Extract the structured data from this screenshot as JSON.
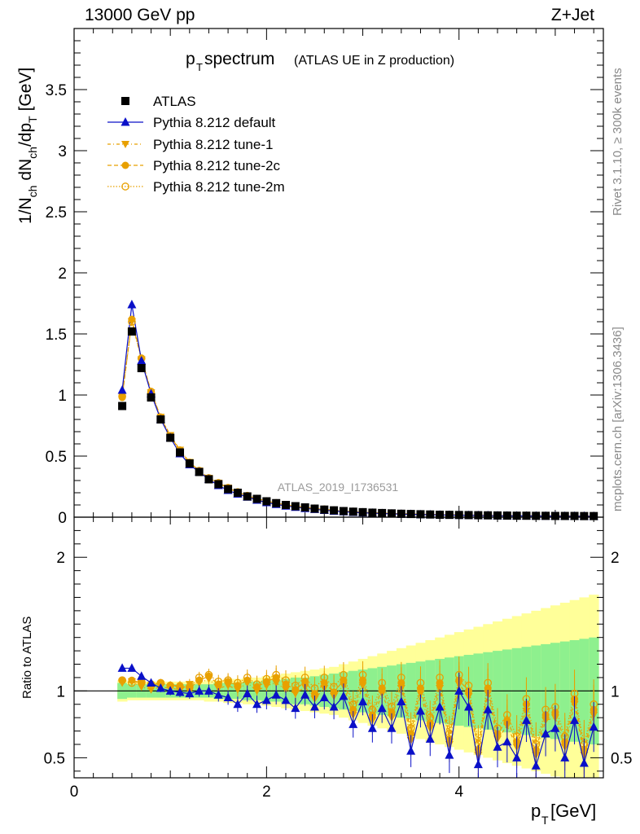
{
  "header": {
    "energy_label": "13000 GeV pp",
    "process_label": "Z+Jet"
  },
  "side_labels": {
    "rivet": "Rivet 3.1.10, ≥ 300k events",
    "mcplots": "mcplots.cern.ch [arXiv:1306.3436]"
  },
  "chart_data": {
    "type": "line",
    "title_main": "p",
    "title_sub": "T",
    "title_rest": " spectrum",
    "title_note": "(ATLAS UE in Z production)",
    "analysis_id": "ATLAS_2019_I1736531",
    "xlabel_main": "p",
    "xlabel_sub": "T",
    "xlabel_unit": " [GeV]",
    "ylabel": "1/N_ch dN_ch/dp_T [GeV]",
    "ylabel_parts": {
      "a": "1/N",
      "b": "ch",
      "c": " dN",
      "d": "ch",
      "e": "/dp",
      "f": "T",
      "g": " [GeV]"
    },
    "ratio_ylabel": "Ratio to ATLAS",
    "xlim": [
      0,
      5.5
    ],
    "ylim": [
      0,
      4.0
    ],
    "ratio_ylim": [
      0.35,
      2.3
    ],
    "x_ticks": [
      "0",
      "2",
      "4"
    ],
    "y_ticks": [
      "0",
      "0.5",
      "1",
      "1.5",
      "2",
      "2.5",
      "3",
      "3.5"
    ],
    "ratio_ticks": [
      "0.5",
      "1",
      "2"
    ],
    "x": [
      0.5,
      0.6,
      0.7,
      0.8,
      0.9,
      1.0,
      1.1,
      1.2,
      1.3,
      1.4,
      1.5,
      1.6,
      1.7,
      1.8,
      1.9,
      2.0,
      2.1,
      2.2,
      2.3,
      2.4,
      2.5,
      2.6,
      2.7,
      2.8,
      2.9,
      3.0,
      3.1,
      3.2,
      3.3,
      3.4,
      3.5,
      3.6,
      3.7,
      3.8,
      3.9,
      4.0,
      4.1,
      4.2,
      4.3,
      4.4,
      4.5,
      4.6,
      4.7,
      4.8,
      4.9,
      5.0,
      5.1,
      5.2,
      5.3,
      5.4
    ],
    "series": [
      {
        "name": "ATLAS",
        "values": [
          0.91,
          1.52,
          1.22,
          0.98,
          0.8,
          0.65,
          0.53,
          0.44,
          0.37,
          0.31,
          0.27,
          0.23,
          0.2,
          0.17,
          0.15,
          0.13,
          0.115,
          0.1,
          0.09,
          0.08,
          0.07,
          0.062,
          0.056,
          0.05,
          0.045,
          0.041,
          0.037,
          0.034,
          0.031,
          0.028,
          0.026,
          0.024,
          0.022,
          0.02,
          0.019,
          0.018,
          0.017,
          0.016,
          0.015,
          0.014,
          0.013,
          0.012,
          0.012,
          0.011,
          0.011,
          0.01,
          0.01,
          0.01,
          0.009,
          0.009
        ]
      },
      {
        "name": "Pythia 8.212 default",
        "values": [
          1.04,
          1.74,
          1.28,
          1.01,
          0.8,
          0.65,
          0.52,
          0.43,
          0.37,
          0.31,
          0.26,
          0.22,
          0.19,
          0.165,
          0.14,
          0.12,
          0.105,
          0.092,
          0.082,
          0.072,
          0.064,
          0.057,
          0.05,
          0.045,
          0.04,
          0.036,
          0.033,
          0.03,
          0.027,
          0.025,
          0.023,
          0.021,
          0.02,
          0.018,
          0.017,
          0.016,
          0.015,
          0.014,
          0.013,
          0.012,
          0.011,
          0.011,
          0.01,
          0.01,
          0.009,
          0.009,
          0.008,
          0.008,
          0.008,
          0.007
        ]
      },
      {
        "name": "Pythia 8.212 tune-1",
        "values": [
          0.99,
          1.6,
          1.29,
          1.02,
          0.82,
          0.67,
          0.55,
          0.45,
          0.38,
          0.32,
          0.28,
          0.24,
          0.2,
          0.175,
          0.15,
          0.13,
          0.115,
          0.1,
          0.09,
          0.08,
          0.071,
          0.063,
          0.056,
          0.05,
          0.045,
          0.041,
          0.037,
          0.034,
          0.031,
          0.028,
          0.026,
          0.024,
          0.022,
          0.02,
          0.019,
          0.018,
          0.017,
          0.016,
          0.015,
          0.014,
          0.013,
          0.012,
          0.012,
          0.011,
          0.011,
          0.01,
          0.01,
          0.01,
          0.009,
          0.009
        ]
      },
      {
        "name": "Pythia 8.212 tune-2c",
        "values": [
          0.98,
          1.62,
          1.3,
          1.03,
          0.82,
          0.66,
          0.55,
          0.45,
          0.38,
          0.32,
          0.28,
          0.24,
          0.205,
          0.175,
          0.152,
          0.132,
          0.115,
          0.1,
          0.09,
          0.08,
          0.071,
          0.063,
          0.056,
          0.05,
          0.045,
          0.041,
          0.037,
          0.034,
          0.031,
          0.028,
          0.026,
          0.024,
          0.022,
          0.02,
          0.019,
          0.018,
          0.017,
          0.016,
          0.015,
          0.014,
          0.013,
          0.012,
          0.012,
          0.011,
          0.011,
          0.01,
          0.01,
          0.01,
          0.009,
          0.009
        ]
      },
      {
        "name": "Pythia 8.212 tune-2m",
        "values": [
          0.99,
          1.6,
          1.3,
          1.02,
          0.81,
          0.66,
          0.54,
          0.44,
          0.38,
          0.32,
          0.28,
          0.24,
          0.205,
          0.175,
          0.152,
          0.132,
          0.116,
          0.101,
          0.091,
          0.081,
          0.072,
          0.064,
          0.057,
          0.051,
          0.046,
          0.042,
          0.038,
          0.035,
          0.032,
          0.029,
          0.027,
          0.025,
          0.023,
          0.021,
          0.02,
          0.019,
          0.018,
          0.017,
          0.016,
          0.015,
          0.014,
          0.013,
          0.013,
          0.012,
          0.012,
          0.011,
          0.011,
          0.011,
          0.01,
          0.01
        ]
      }
    ],
    "ratios": {
      "Pythia 8.212 default": [
        1.17,
        1.17,
        1.11,
        1.06,
        1.02,
        1.0,
        0.99,
        0.98,
        1.0,
        1.0,
        0.97,
        0.95,
        0.9,
        0.98,
        0.9,
        0.93,
        0.97,
        0.93,
        0.87,
        0.97,
        0.88,
        0.95,
        0.88,
        0.96,
        0.75,
        0.92,
        0.72,
        0.87,
        0.72,
        0.92,
        0.55,
        0.85,
        0.64,
        0.88,
        0.52,
        1.0,
        0.88,
        0.45,
        0.86,
        0.58,
        0.62,
        0.5,
        0.78,
        0.44,
        0.68,
        0.72,
        0.5,
        0.78,
        0.46,
        0.73
      ],
      "Pythia 8.212 tune-1": [
        1.06,
        1.07,
        1.03,
        1.01,
        1.03,
        1.02,
        1.01,
        1.05,
        1.06,
        1.09,
        1.02,
        1.04,
        1.01,
        1.06,
        1.0,
        1.04,
        1.06,
        1.01,
        0.98,
        1.03,
        0.94,
        1.02,
        0.96,
        1.04,
        0.82,
        1.04,
        0.78,
        0.98,
        0.8,
        1.02,
        0.63,
        0.98,
        0.72,
        1.02,
        0.6,
        1.05,
        0.96,
        0.52,
        0.98,
        0.64,
        0.74,
        0.58,
        0.85,
        0.52,
        0.78,
        0.8,
        0.58,
        0.9,
        0.52,
        0.82
      ],
      "Pythia 8.212 tune-2c": [
        1.08,
        1.08,
        1.06,
        1.04,
        1.06,
        1.04,
        1.04,
        1.02,
        1.08,
        1.11,
        1.05,
        1.07,
        1.04,
        1.08,
        1.03,
        1.07,
        1.1,
        1.05,
        1.01,
        1.07,
        0.98,
        1.06,
        0.99,
        1.08,
        0.86,
        1.08,
        0.82,
        1.02,
        0.84,
        1.06,
        0.68,
        1.02,
        0.76,
        1.06,
        0.64,
        1.08,
        1.0,
        0.56,
        1.02,
        0.68,
        0.78,
        0.62,
        0.9,
        0.56,
        0.82,
        0.84,
        0.62,
        0.94,
        0.56,
        0.86
      ],
      "Pythia 8.212 tune-2m": [
        1.08,
        1.06,
        1.07,
        1.05,
        1.06,
        1.04,
        1.03,
        1.03,
        1.1,
        1.12,
        1.07,
        1.08,
        1.06,
        1.1,
        1.05,
        1.09,
        1.12,
        1.08,
        1.04,
        1.1,
        1.02,
        1.1,
        1.03,
        1.12,
        0.9,
        1.12,
        0.86,
        1.06,
        0.88,
        1.1,
        0.72,
        1.06,
        0.8,
        1.1,
        0.68,
        1.12,
        1.04,
        0.6,
        1.06,
        0.72,
        0.82,
        0.66,
        0.94,
        0.6,
        0.86,
        0.88,
        0.66,
        0.98,
        0.6,
        0.9
      ]
    },
    "data_band_inner": [
      0.06,
      0.05,
      0.05,
      0.05,
      0.05,
      0.05,
      0.05,
      0.05,
      0.05,
      0.05,
      0.06,
      0.06,
      0.06,
      0.07,
      0.07,
      0.08,
      0.08,
      0.09,
      0.1,
      0.1,
      0.11,
      0.12,
      0.13,
      0.14,
      0.15,
      0.16,
      0.17,
      0.18,
      0.19,
      0.2,
      0.21,
      0.22,
      0.23,
      0.24,
      0.25,
      0.26,
      0.27,
      0.28,
      0.29,
      0.3,
      0.31,
      0.32,
      0.33,
      0.34,
      0.35,
      0.36,
      0.37,
      0.38,
      0.39,
      0.4
    ],
    "data_band_outer": [
      0.08,
      0.07,
      0.07,
      0.07,
      0.07,
      0.07,
      0.07,
      0.07,
      0.07,
      0.08,
      0.08,
      0.09,
      0.09,
      0.1,
      0.1,
      0.11,
      0.12,
      0.13,
      0.14,
      0.15,
      0.16,
      0.17,
      0.18,
      0.2,
      0.22,
      0.24,
      0.26,
      0.28,
      0.3,
      0.32,
      0.34,
      0.36,
      0.38,
      0.4,
      0.42,
      0.44,
      0.46,
      0.48,
      0.5,
      0.52,
      0.54,
      0.56,
      0.58,
      0.6,
      0.62,
      0.64,
      0.66,
      0.68,
      0.7,
      0.72
    ]
  },
  "colors": {
    "atlas": "#000000",
    "default": "#0a10c8",
    "tune": "#e8a000",
    "band_inner": "#8ef08e",
    "band_outer": "#ffff99"
  }
}
